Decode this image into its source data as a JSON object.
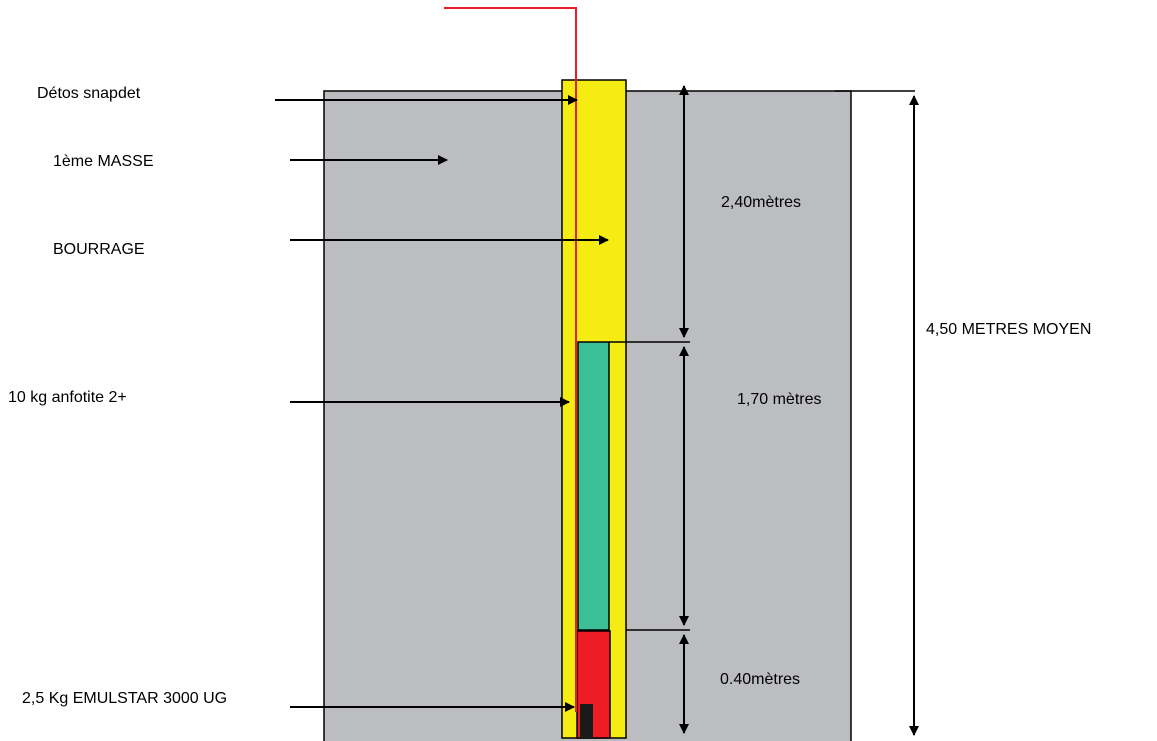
{
  "colors": {
    "rock_mass": "#bcbdc0",
    "stemming": "#f4ec12",
    "anfotite": "#3bbf96",
    "emulstar": "#ee1c24",
    "detonator_wire": "#ee1c24",
    "lines": "#000000",
    "background": "#ffffff"
  },
  "labels": {
    "detonator": "Détos snapdet",
    "mass": "1ème MASSE",
    "stemming": "BOURRAGE",
    "anfotite": "10 kg anfotite 2+",
    "emulstar": "2,5 Kg EMULSTAR 3000 UG"
  },
  "dimensions": {
    "stemming_length": "2,40mètres",
    "anfotite_length": "1,70 mètres",
    "emulstar_length": "0.40mètres",
    "total_depth": "4,50 METRES MOYEN"
  }
}
